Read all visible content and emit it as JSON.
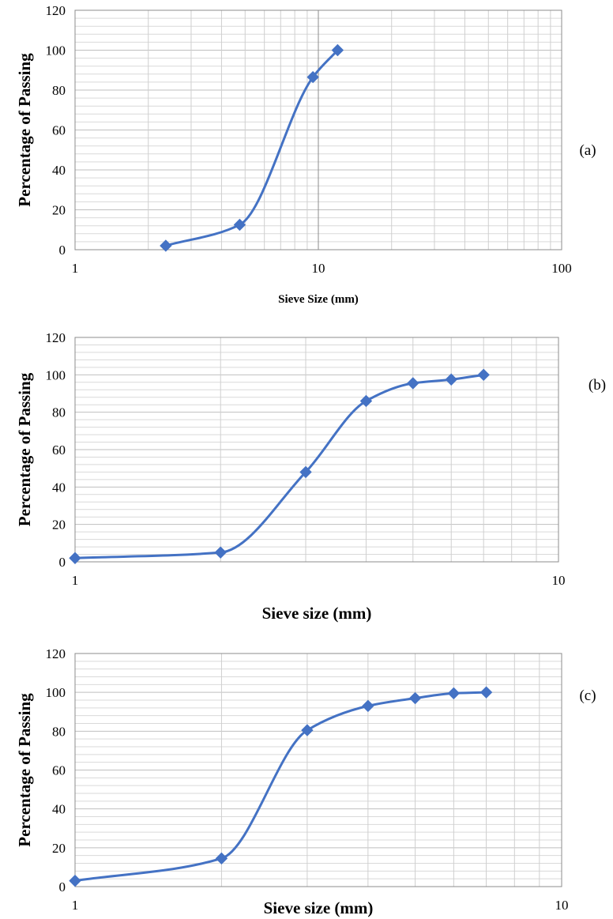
{
  "chart_data": [
    {
      "type": "line",
      "panel_label": "(a)",
      "xlabel": "Sieve Size (mm)",
      "ylabel": "Percentage of  Passing",
      "x_scale": "log",
      "xlim": [
        1,
        100
      ],
      "ylim": [
        0,
        120
      ],
      "x_ticks": [
        "1",
        "10",
        "100"
      ],
      "y_ticks": [
        "0",
        "20",
        "40",
        "60",
        "80",
        "100",
        "120"
      ],
      "grid": true,
      "color": "#4472C4",
      "series": [
        {
          "x": [
            2.36,
            4.75,
            9.5,
            12.0
          ],
          "y": [
            2,
            12.5,
            86.5,
            100
          ]
        }
      ]
    },
    {
      "type": "line",
      "panel_label": "(b)",
      "xlabel": "Sieve size (mm)",
      "ylabel": "Percentage of Passing",
      "x_scale": "log",
      "xlim": [
        1,
        10
      ],
      "ylim": [
        0,
        120
      ],
      "x_ticks": [
        "1",
        "10"
      ],
      "y_ticks": [
        "0",
        "20",
        "40",
        "60",
        "80",
        "100",
        "120"
      ],
      "grid": true,
      "color": "#4472C4",
      "series": [
        {
          "x": [
            1.0,
            2.0,
            3.0,
            4.0,
            5.0,
            6.0,
            7.0
          ],
          "y": [
            2,
            5,
            48,
            86,
            95.5,
            97.5,
            100
          ]
        }
      ]
    },
    {
      "type": "line",
      "panel_label": "(c)",
      "xlabel": "Sieve size (mm)",
      "ylabel": "Percentage of Passing",
      "x_scale": "log",
      "xlim": [
        1,
        10
      ],
      "ylim": [
        0,
        120
      ],
      "x_ticks": [
        "1",
        "10"
      ],
      "y_ticks": [
        "0",
        "20",
        "40",
        "60",
        "80",
        "100",
        "120"
      ],
      "grid": true,
      "color": "#4472C4",
      "series": [
        {
          "x": [
            1.0,
            2.0,
            3.0,
            4.0,
            5.0,
            6.0,
            7.0
          ],
          "y": [
            3,
            14.5,
            80.5,
            93,
            97,
            99.5,
            100
          ]
        }
      ]
    }
  ]
}
